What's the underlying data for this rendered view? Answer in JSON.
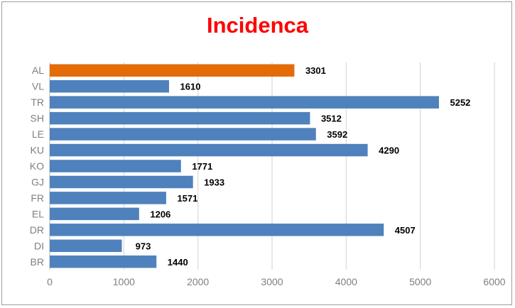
{
  "chart_data": {
    "type": "bar",
    "orientation": "horizontal",
    "title": "Incidenca",
    "xlabel": "",
    "ylabel": "",
    "categories": [
      "AL",
      "VL",
      "TR",
      "SH",
      "LE",
      "KU",
      "KO",
      "GJ",
      "FR",
      "EL",
      "DR",
      "DI",
      "BR"
    ],
    "values": [
      3301,
      1610,
      5252,
      3512,
      3592,
      4290,
      1771,
      1933,
      1571,
      1206,
      4507,
      973,
      1440
    ],
    "highlight_category": "AL",
    "xlim": [
      0,
      6000
    ],
    "xticks": [
      0,
      1000,
      2000,
      3000,
      4000,
      5000,
      6000
    ],
    "grid": true,
    "data_labels": true
  },
  "colors": {
    "title": "#ff0000",
    "bar": "#4f81bd",
    "highlight_bar": "#e36c09",
    "gridline": "#d9d9d9",
    "axis": "#bfbfbf"
  }
}
